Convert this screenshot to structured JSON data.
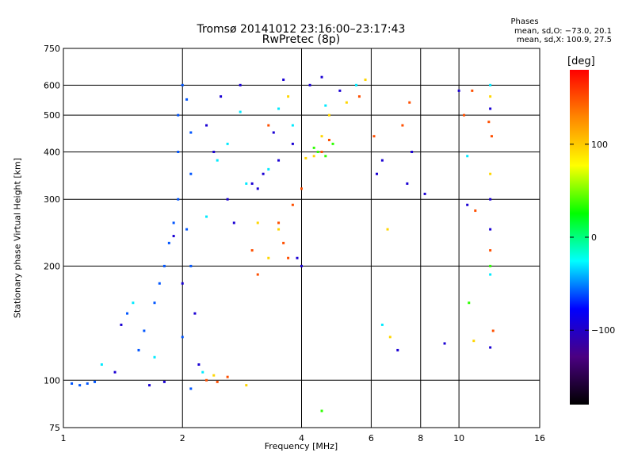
{
  "header": {
    "title_line1": "Tromsø 20141012 23:16:00–23:17:43",
    "title_line2": "RwPretec (8p)"
  },
  "phase_info": {
    "title": "Phases",
    "line1": "mean, sd,O: −73.0, 20.1",
    "line2": "mean, sd,X: 100.9, 27.5"
  },
  "colorbar": {
    "unit": "[deg]",
    "ticks": [
      "100",
      "0",
      "−100"
    ],
    "tick_values": [
      100,
      0,
      -100
    ],
    "range": [
      -180,
      180
    ],
    "colors": [
      "#000000",
      "#4b0082",
      "#0000ff",
      "#00ffff",
      "#00ff00",
      "#ffff00",
      "#ff8800",
      "#ff0000"
    ]
  },
  "chart_data": {
    "type": "scatter",
    "xlabel": "Frequency [MHz]",
    "ylabel": "Stationary phase Virtual Height [km]",
    "xscale": "log",
    "yscale": "log",
    "xlim": [
      1,
      16
    ],
    "ylim": [
      75,
      750
    ],
    "xticks": [
      1,
      2,
      4,
      6,
      8,
      10,
      16
    ],
    "yticks": [
      75,
      100,
      200,
      300,
      400,
      500,
      600,
      750
    ],
    "grid": true,
    "series": [
      {
        "phase_deg": -60,
        "points": [
          [
            1.05,
            98
          ],
          [
            1.1,
            97
          ],
          [
            1.15,
            98
          ],
          [
            1.2,
            99
          ],
          [
            1.45,
            150
          ],
          [
            1.55,
            120
          ],
          [
            1.6,
            135
          ],
          [
            1.7,
            160
          ],
          [
            1.75,
            180
          ],
          [
            1.8,
            200
          ],
          [
            1.85,
            230
          ],
          [
            1.9,
            260
          ],
          [
            1.95,
            300
          ],
          [
            1.95,
            400
          ],
          [
            1.95,
            500
          ],
          [
            2.0,
            600
          ],
          [
            2.05,
            550
          ],
          [
            2.1,
            450
          ],
          [
            2.1,
            350
          ],
          [
            2.05,
            250
          ],
          [
            2.1,
            200
          ],
          [
            2.0,
            130
          ],
          [
            2.1,
            95
          ]
        ]
      },
      {
        "phase_deg": -95,
        "points": [
          [
            1.35,
            105
          ],
          [
            1.4,
            140
          ],
          [
            1.65,
            97
          ],
          [
            1.8,
            99
          ],
          [
            1.9,
            240
          ],
          [
            2.0,
            180
          ],
          [
            2.15,
            150
          ],
          [
            2.2,
            110
          ],
          [
            2.3,
            470
          ],
          [
            2.4,
            400
          ],
          [
            2.5,
            560
          ],
          [
            2.6,
            300
          ],
          [
            2.7,
            260
          ],
          [
            2.8,
            600
          ],
          [
            3.0,
            330
          ],
          [
            3.1,
            320
          ],
          [
            3.2,
            350
          ],
          [
            3.4,
            450
          ],
          [
            3.5,
            380
          ],
          [
            3.6,
            620
          ],
          [
            3.8,
            420
          ],
          [
            3.9,
            210
          ],
          [
            4.0,
            200
          ],
          [
            4.2,
            600
          ],
          [
            4.5,
            630
          ],
          [
            5.0,
            580
          ],
          [
            6.2,
            350
          ],
          [
            6.4,
            380
          ],
          [
            7.0,
            120
          ],
          [
            7.4,
            330
          ],
          [
            7.6,
            400
          ],
          [
            8.2,
            310
          ],
          [
            9.2,
            125
          ],
          [
            10.0,
            580
          ],
          [
            10.5,
            290
          ],
          [
            12.0,
            300
          ],
          [
            12.0,
            250
          ],
          [
            12.0,
            122
          ],
          [
            12.0,
            520
          ]
        ]
      },
      {
        "phase_deg": -30,
        "points": [
          [
            1.25,
            110
          ],
          [
            1.5,
            160
          ],
          [
            1.7,
            115
          ],
          [
            2.25,
            105
          ],
          [
            2.3,
            270
          ],
          [
            2.45,
            380
          ],
          [
            2.6,
            420
          ],
          [
            2.8,
            510
          ],
          [
            2.9,
            330
          ],
          [
            3.3,
            360
          ],
          [
            3.5,
            520
          ],
          [
            3.8,
            470
          ],
          [
            4.6,
            530
          ],
          [
            5.5,
            600
          ],
          [
            6.4,
            140
          ],
          [
            10.5,
            390
          ],
          [
            12.0,
            600
          ],
          [
            12.0,
            190
          ]
        ]
      },
      {
        "phase_deg": 95,
        "points": [
          [
            2.4,
            103
          ],
          [
            2.9,
            97
          ],
          [
            3.1,
            260
          ],
          [
            3.3,
            210
          ],
          [
            3.5,
            250
          ],
          [
            3.7,
            560
          ],
          [
            4.1,
            385
          ],
          [
            4.3,
            390
          ],
          [
            4.5,
            440
          ],
          [
            4.7,
            500
          ],
          [
            5.2,
            540
          ],
          [
            5.8,
            620
          ],
          [
            6.6,
            250
          ],
          [
            6.7,
            130
          ],
          [
            10.9,
            127
          ],
          [
            12.0,
            350
          ],
          [
            12.0,
            560
          ]
        ]
      },
      {
        "phase_deg": 150,
        "points": [
          [
            2.3,
            100
          ],
          [
            2.45,
            99
          ],
          [
            2.6,
            102
          ],
          [
            3.0,
            220
          ],
          [
            3.1,
            190
          ],
          [
            3.3,
            470
          ],
          [
            3.5,
            260
          ],
          [
            3.6,
            230
          ],
          [
            3.7,
            210
          ],
          [
            3.8,
            290
          ],
          [
            4.0,
            320
          ],
          [
            4.5,
            400
          ],
          [
            4.7,
            430
          ],
          [
            5.6,
            560
          ],
          [
            6.1,
            440
          ],
          [
            7.2,
            470
          ],
          [
            7.5,
            540
          ],
          [
            10.3,
            500
          ],
          [
            10.8,
            580
          ],
          [
            11.0,
            280
          ],
          [
            11.9,
            480
          ],
          [
            12.1,
            440
          ],
          [
            12.2,
            135
          ],
          [
            12.0,
            220
          ]
        ]
      },
      {
        "phase_deg": 35,
        "points": [
          [
            4.3,
            410
          ],
          [
            4.4,
            400
          ],
          [
            4.6,
            390
          ],
          [
            4.8,
            420
          ],
          [
            4.5,
            83
          ],
          [
            10.6,
            160
          ],
          [
            12.0,
            200
          ]
        ]
      }
    ]
  }
}
